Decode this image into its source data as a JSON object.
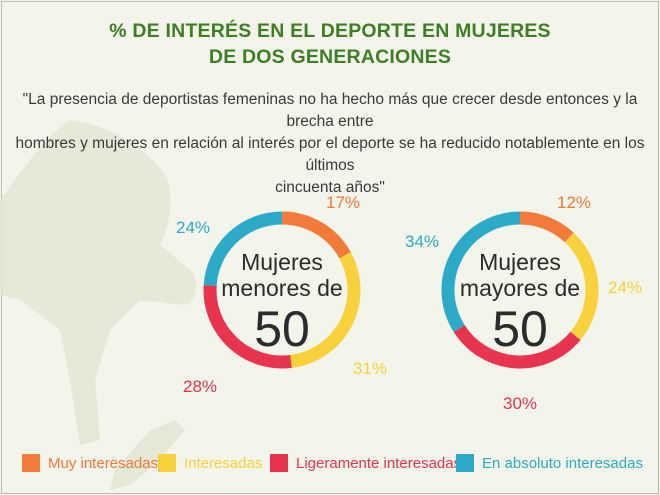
{
  "title_line1": "% DE INTERÉS EN EL DEPORTE EN MUJERES",
  "title_line2": "DE DOS GENERACIONES",
  "quote_line1": "\"La presencia de deportistas femeninas no ha hecho más que crecer desde entonces y la brecha entre",
  "quote_line2": "hombres y mujeres en relación al interés por el deporte se ha reducido notablemente en los últimos",
  "quote_line3": "cincuenta años\"",
  "colors": {
    "background": "#f3f4ea",
    "title": "#3f7d26",
    "muy": "#f27a3a",
    "interesadas": "#f7d23c",
    "ligeramente": "#e8344f",
    "absoluto": "#2eaac9"
  },
  "chart_data": [
    {
      "type": "pie",
      "style": "donut",
      "center_label": [
        "Mujeres",
        "menores de",
        "50"
      ],
      "categories": [
        "Muy interesadas",
        "Interesadas",
        "Ligeramente interesadas",
        "En absoluto interesadas"
      ],
      "values": [
        17,
        31,
        28,
        24
      ],
      "value_labels": [
        "17%",
        "31%",
        "28%",
        "24%"
      ]
    },
    {
      "type": "pie",
      "style": "donut",
      "center_label": [
        "Mujeres",
        "mayores de",
        "50"
      ],
      "categories": [
        "Muy interesadas",
        "Interesadas",
        "Ligeramente interesadas",
        "En absoluto interesadas"
      ],
      "values": [
        12,
        24,
        30,
        34
      ],
      "value_labels": [
        "12%",
        "24%",
        "30%",
        "34%"
      ]
    }
  ],
  "legend": [
    {
      "label": "Muy interesadas",
      "color": "#f27a3a"
    },
    {
      "label": "Interesadas",
      "color": "#f7d23c"
    },
    {
      "label": "Ligeramente interesadas",
      "color": "#e8344f"
    },
    {
      "label": "En absoluto interesadas",
      "color": "#2eaac9"
    }
  ]
}
